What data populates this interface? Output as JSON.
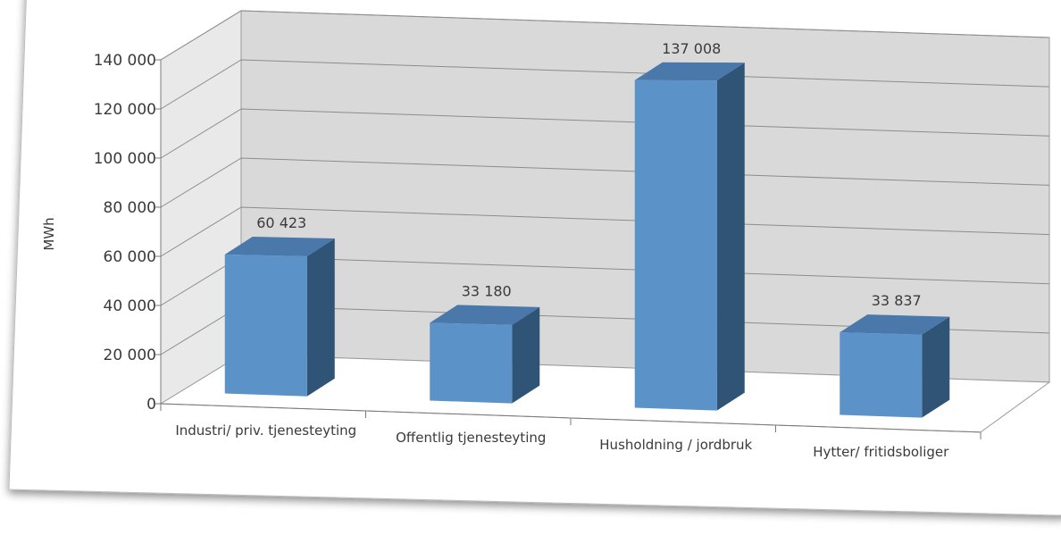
{
  "chart_data": {
    "type": "bar",
    "style": "3d-column",
    "categories": [
      "Industri/ priv. tjenesteyting",
      "Offentlig tjenesteyting",
      "Husholdning / jordbruk",
      "Hytter/ fritidsboliger"
    ],
    "values": [
      60423,
      33180,
      137008,
      33837
    ],
    "value_labels": [
      "60 423",
      "33 180",
      "137 008",
      "33 837"
    ],
    "ylabel": "MWh",
    "ylim": [
      0,
      140000
    ],
    "yticks": [
      0,
      20000,
      40000,
      60000,
      80000,
      100000,
      120000,
      140000
    ],
    "ytick_labels": [
      "0",
      "20 000",
      "40 000",
      "60 000",
      "80 000",
      "100 000",
      "120 000",
      "140 000"
    ],
    "grid": true,
    "legend": "none",
    "colors": {
      "bar_front": "#5b93c9",
      "bar_top": "#4a78aa",
      "bar_side": "#2f5475",
      "wall": "#d9d9d9",
      "floor": "#ffffff",
      "grid": "#8c8c8c"
    }
  }
}
